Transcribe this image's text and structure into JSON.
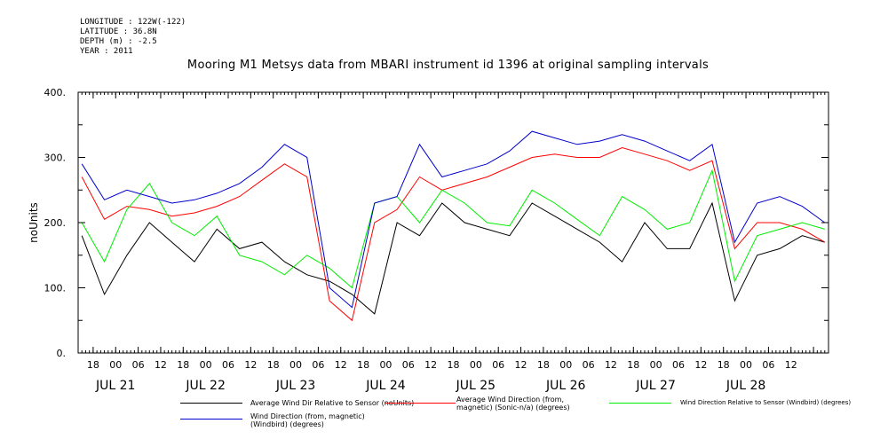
{
  "header": {
    "lines": [
      "LONGITUDE : 122W(-122)",
      "LATITUDE : 36.8N",
      "DEPTH (m) : -2.5",
      "YEAR : 2011"
    ]
  },
  "chart_data": {
    "type": "line",
    "title": "Mooring M1 Metsys data from MBARI instrument id 1396 at original sampling intervals",
    "xlabel": "",
    "ylabel": "noUnits",
    "xlim": [
      "2011-07-20T14:00",
      "2011-07-28T22:00"
    ],
    "ylim": [
      0,
      400
    ],
    "y_ticks": [
      0,
      100,
      200,
      300,
      400
    ],
    "y_tick_labels": [
      "0.",
      "100.",
      "200.",
      "300.",
      "400."
    ],
    "x_hour_labels": [
      "18",
      "00",
      "06",
      "12",
      "18",
      "00",
      "06",
      "12",
      "18",
      "00",
      "06",
      "12",
      "18",
      "00",
      "06",
      "12",
      "18",
      "00",
      "06",
      "12",
      "18",
      "00",
      "06",
      "12",
      "18",
      "00",
      "06",
      "12",
      "18",
      "00",
      "06",
      "12"
    ],
    "x_day_labels": [
      "JUL 21",
      "JUL 22",
      "JUL 23",
      "JUL 24",
      "JUL 25",
      "JUL 26",
      "JUL 27",
      "JUL 28"
    ],
    "grid": false,
    "legend_position": "bottom",
    "series": [
      {
        "name": "Average Wind Dir Relative to Sensor (noUnits)",
        "color": "#000000",
        "x": [
          "2011-07-20T15:00",
          "2011-07-20T21:00",
          "2011-07-21T03:00",
          "2011-07-21T09:00",
          "2011-07-21T15:00",
          "2011-07-21T21:00",
          "2011-07-22T03:00",
          "2011-07-22T09:00",
          "2011-07-22T15:00",
          "2011-07-22T21:00",
          "2011-07-23T03:00",
          "2011-07-23T09:00",
          "2011-07-23T15:00",
          "2011-07-23T21:00",
          "2011-07-24T03:00",
          "2011-07-24T09:00",
          "2011-07-24T15:00",
          "2011-07-24T21:00",
          "2011-07-25T03:00",
          "2011-07-25T09:00",
          "2011-07-25T15:00",
          "2011-07-25T21:00",
          "2011-07-26T03:00",
          "2011-07-26T09:00",
          "2011-07-26T15:00",
          "2011-07-26T21:00",
          "2011-07-27T03:00",
          "2011-07-27T09:00",
          "2011-07-27T15:00",
          "2011-07-27T21:00",
          "2011-07-28T03:00",
          "2011-07-28T09:00",
          "2011-07-28T15:00",
          "2011-07-28T21:00"
        ],
        "y": [
          180,
          90,
          150,
          200,
          170,
          140,
          190,
          160,
          170,
          140,
          120,
          110,
          90,
          60,
          200,
          180,
          230,
          200,
          190,
          180,
          230,
          210,
          190,
          170,
          140,
          200,
          160,
          160,
          230,
          80,
          150,
          160,
          180,
          170
        ]
      },
      {
        "name": "Average Wind Direction (from, magnetic) (Sonic-n/a) (degrees)",
        "color": "#ff0000",
        "x": [
          "2011-07-20T15:00",
          "2011-07-20T21:00",
          "2011-07-21T03:00",
          "2011-07-21T09:00",
          "2011-07-21T15:00",
          "2011-07-21T21:00",
          "2011-07-22T03:00",
          "2011-07-22T09:00",
          "2011-07-22T15:00",
          "2011-07-22T21:00",
          "2011-07-23T03:00",
          "2011-07-23T09:00",
          "2011-07-23T15:00",
          "2011-07-23T21:00",
          "2011-07-24T03:00",
          "2011-07-24T09:00",
          "2011-07-24T15:00",
          "2011-07-24T21:00",
          "2011-07-25T03:00",
          "2011-07-25T09:00",
          "2011-07-25T15:00",
          "2011-07-25T21:00",
          "2011-07-26T03:00",
          "2011-07-26T09:00",
          "2011-07-26T15:00",
          "2011-07-26T21:00",
          "2011-07-27T03:00",
          "2011-07-27T09:00",
          "2011-07-27T15:00",
          "2011-07-27T21:00",
          "2011-07-28T03:00",
          "2011-07-28T09:00",
          "2011-07-28T15:00",
          "2011-07-28T21:00"
        ],
        "y": [
          270,
          205,
          225,
          220,
          210,
          215,
          225,
          240,
          265,
          290,
          270,
          80,
          50,
          200,
          220,
          270,
          250,
          260,
          270,
          285,
          300,
          305,
          300,
          300,
          315,
          305,
          295,
          280,
          295,
          160,
          200,
          200,
          190,
          170
        ]
      },
      {
        "name": "Wind Direction Relative to Sensor (Windbird) (degrees)",
        "color": "#00ee00",
        "x": [
          "2011-07-20T15:00",
          "2011-07-20T21:00",
          "2011-07-21T03:00",
          "2011-07-21T09:00",
          "2011-07-21T15:00",
          "2011-07-21T21:00",
          "2011-07-22T03:00",
          "2011-07-22T09:00",
          "2011-07-22T15:00",
          "2011-07-22T21:00",
          "2011-07-23T03:00",
          "2011-07-23T09:00",
          "2011-07-23T15:00",
          "2011-07-23T21:00",
          "2011-07-24T03:00",
          "2011-07-24T09:00",
          "2011-07-24T15:00",
          "2011-07-24T21:00",
          "2011-07-25T03:00",
          "2011-07-25T09:00",
          "2011-07-25T15:00",
          "2011-07-25T21:00",
          "2011-07-26T03:00",
          "2011-07-26T09:00",
          "2011-07-26T15:00",
          "2011-07-26T21:00",
          "2011-07-27T03:00",
          "2011-07-27T09:00",
          "2011-07-27T15:00",
          "2011-07-27T21:00",
          "2011-07-28T03:00",
          "2011-07-28T09:00",
          "2011-07-28T15:00",
          "2011-07-28T21:00"
        ],
        "y": [
          200,
          140,
          220,
          260,
          200,
          180,
          210,
          150,
          140,
          120,
          150,
          130,
          100,
          230,
          240,
          200,
          250,
          230,
          200,
          195,
          250,
          230,
          205,
          180,
          240,
          220,
          190,
          200,
          280,
          110,
          180,
          190,
          200,
          190
        ]
      },
      {
        "name": "Wind Direction (from, magnetic) (Windbird) (degrees)",
        "color": "#0000cc",
        "x": [
          "2011-07-20T15:00",
          "2011-07-20T21:00",
          "2011-07-21T03:00",
          "2011-07-21T09:00",
          "2011-07-21T15:00",
          "2011-07-21T21:00",
          "2011-07-22T03:00",
          "2011-07-22T09:00",
          "2011-07-22T15:00",
          "2011-07-22T21:00",
          "2011-07-23T03:00",
          "2011-07-23T09:00",
          "2011-07-23T15:00",
          "2011-07-23T21:00",
          "2011-07-24T03:00",
          "2011-07-24T09:00",
          "2011-07-24T15:00",
          "2011-07-24T21:00",
          "2011-07-25T03:00",
          "2011-07-25T09:00",
          "2011-07-25T15:00",
          "2011-07-25T21:00",
          "2011-07-26T03:00",
          "2011-07-26T09:00",
          "2011-07-26T15:00",
          "2011-07-26T21:00",
          "2011-07-27T03:00",
          "2011-07-27T09:00",
          "2011-07-27T15:00",
          "2011-07-27T21:00",
          "2011-07-28T03:00",
          "2011-07-28T09:00",
          "2011-07-28T15:00",
          "2011-07-28T21:00"
        ],
        "y": [
          290,
          235,
          250,
          240,
          230,
          235,
          245,
          260,
          285,
          320,
          300,
          100,
          70,
          230,
          240,
          320,
          270,
          280,
          290,
          310,
          340,
          330,
          320,
          325,
          335,
          325,
          310,
          295,
          320,
          170,
          230,
          240,
          225,
          200
        ]
      }
    ]
  }
}
